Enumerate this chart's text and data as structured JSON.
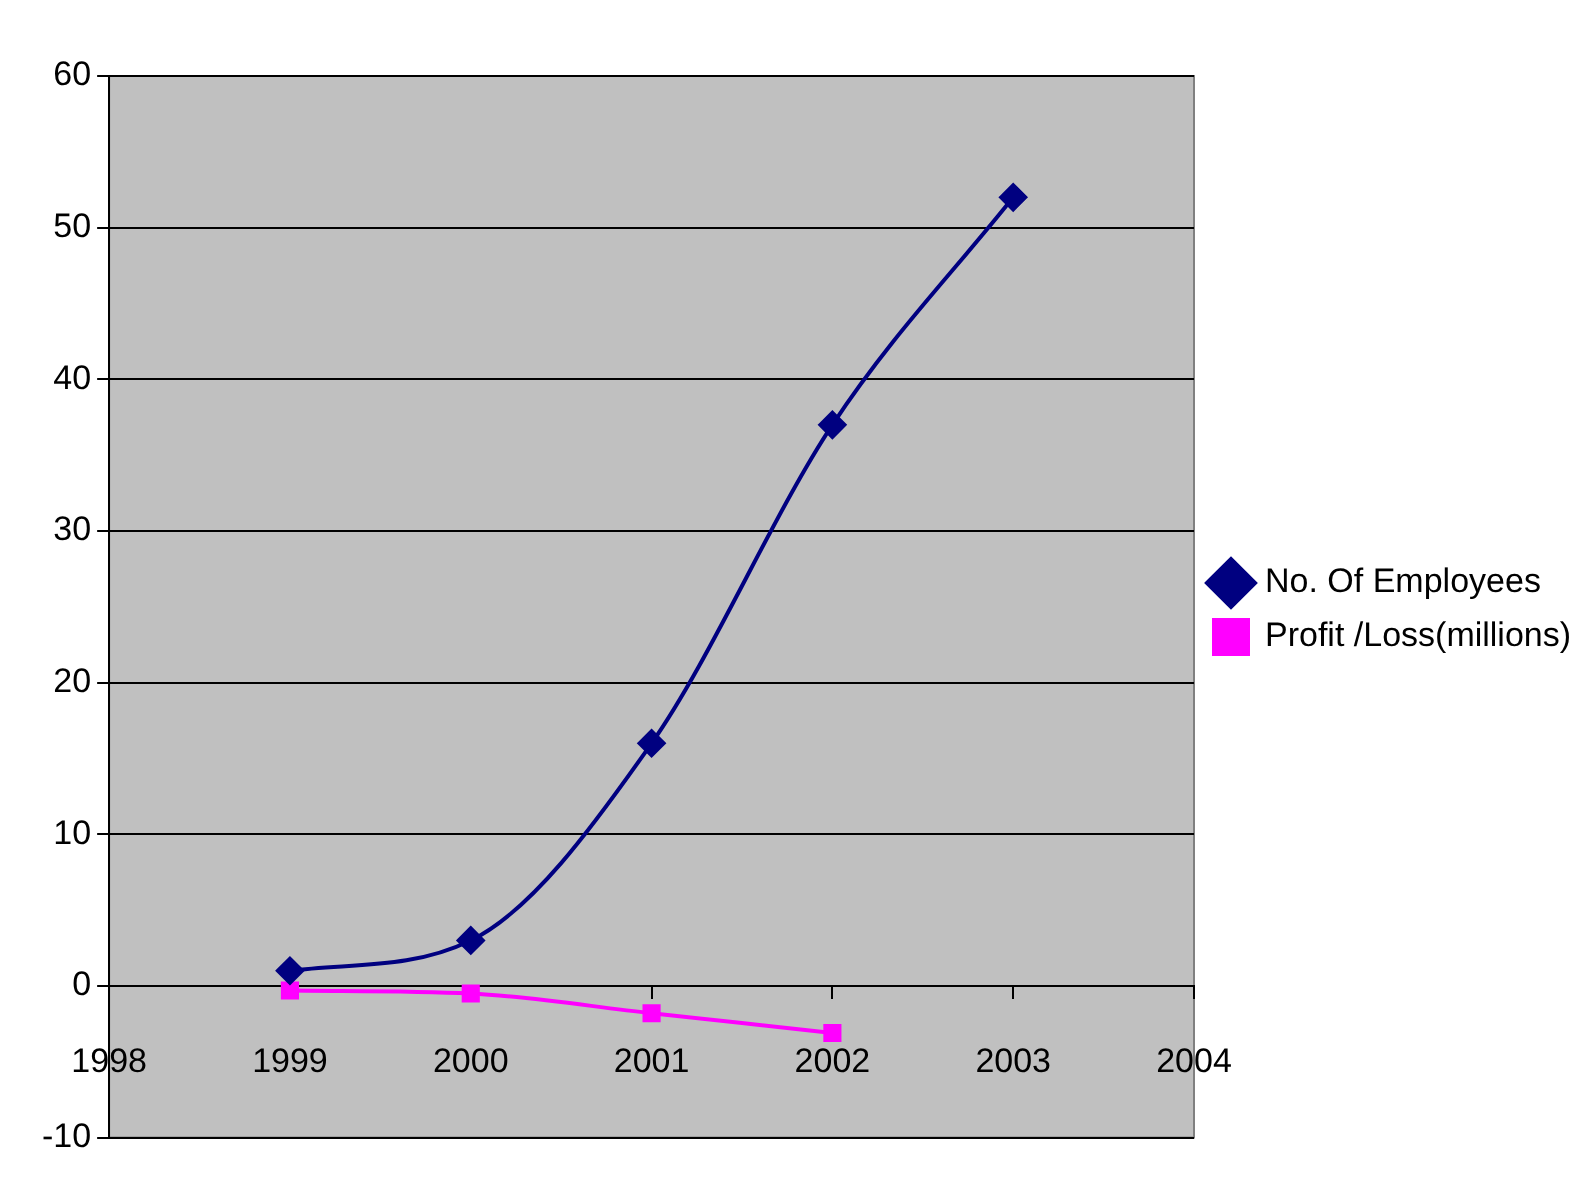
{
  "chart_data": {
    "type": "line",
    "x": [
      1999,
      2000,
      2001,
      2002,
      2003
    ],
    "series": [
      {
        "name": "No. Of Employees",
        "color": "#000080",
        "values": [
          1,
          3,
          16,
          37,
          52
        ],
        "marker": "diamond"
      },
      {
        "name": "Profit /Loss(millions)",
        "color": "#ff00ff",
        "values": [
          -0.3,
          -0.5,
          -1.8,
          -3.1,
          null
        ],
        "marker": "square"
      }
    ],
    "xlim": [
      1998,
      2004
    ],
    "xticks": [
      1998,
      1999,
      2000,
      2001,
      2002,
      2003,
      2004
    ],
    "ylim": [
      -10,
      60
    ],
    "yticks": [
      -10,
      0,
      10,
      20,
      30,
      40,
      50,
      60
    ],
    "grid": "y",
    "legend": "right",
    "line_style": "solid"
  }
}
